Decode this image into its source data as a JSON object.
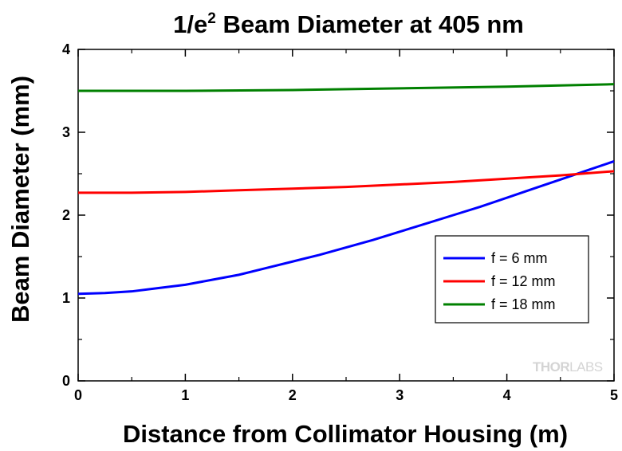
{
  "chart_data": {
    "type": "line",
    "title_main": "1/e",
    "title_sup": "2",
    "title_rest": " Beam Diameter at 405 nm",
    "xlabel": "Distance from Collimator Housing (m)",
    "ylabel": "Beam Diameter (mm)",
    "xlim": [
      0,
      5
    ],
    "ylim": [
      0,
      4
    ],
    "xticks": [
      0,
      1,
      2,
      3,
      4,
      5
    ],
    "yticks": [
      0,
      1,
      2,
      3,
      4
    ],
    "grid": false,
    "legend_position": "right-middle",
    "series": [
      {
        "name": "f = 6 mm",
        "color": "#0000ff",
        "x": [
          0,
          0.25,
          0.5,
          0.75,
          1.0,
          1.25,
          1.5,
          1.75,
          2.0,
          2.25,
          2.5,
          2.75,
          3.0,
          3.25,
          3.5,
          3.75,
          4.0,
          4.25,
          4.5,
          4.75,
          5.0
        ],
        "y": [
          1.05,
          1.06,
          1.08,
          1.12,
          1.16,
          1.22,
          1.28,
          1.36,
          1.44,
          1.52,
          1.61,
          1.7,
          1.8,
          1.9,
          2.0,
          2.1,
          2.21,
          2.32,
          2.43,
          2.54,
          2.65
        ]
      },
      {
        "name": "f = 12 mm",
        "color": "#ff0000",
        "x": [
          0,
          0.5,
          1.0,
          1.5,
          2.0,
          2.5,
          3.0,
          3.5,
          4.0,
          4.5,
          5.0
        ],
        "y": [
          2.27,
          2.27,
          2.28,
          2.3,
          2.32,
          2.34,
          2.37,
          2.4,
          2.44,
          2.48,
          2.53
        ]
      },
      {
        "name": "f = 18 mm",
        "color": "#008000",
        "x": [
          0,
          1.0,
          2.0,
          3.0,
          4.0,
          5.0
        ],
        "y": [
          3.5,
          3.5,
          3.51,
          3.53,
          3.55,
          3.58
        ]
      }
    ]
  },
  "watermark": {
    "text_a": "THOR",
    "text_b": "LABS"
  }
}
